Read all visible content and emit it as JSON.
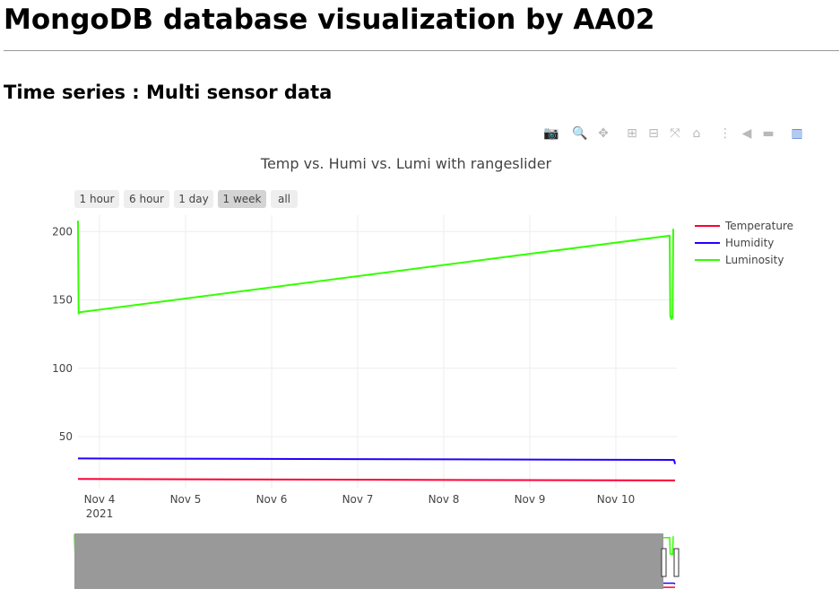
{
  "page": {
    "heading": "MongoDB database visualization by AA02",
    "subheading": "Time series : Multi sensor data"
  },
  "modebar": [
    {
      "name": "camera-icon",
      "glyph": "📷"
    },
    {
      "name": "zoom-icon",
      "glyph": "🔍"
    },
    {
      "name": "pan-icon",
      "glyph": "✥"
    },
    {
      "name": "zoom-in-icon",
      "glyph": "⊞"
    },
    {
      "name": "zoom-out-icon",
      "glyph": "⊟"
    },
    {
      "name": "autoscale-icon",
      "glyph": "⤧"
    },
    {
      "name": "reset-axes-icon",
      "glyph": "⌂"
    },
    {
      "name": "spike-lines-icon",
      "glyph": "⋮"
    },
    {
      "name": "hover-closest-icon",
      "glyph": "◀"
    },
    {
      "name": "hover-compare-icon",
      "glyph": "▬"
    },
    {
      "name": "plotly-logo-icon",
      "glyph": "▥"
    }
  ],
  "chart_data": {
    "type": "line",
    "title": "Temp vs. Humi vs. Lumi with rangeslider",
    "range_selector": {
      "buttons": [
        "1 hour",
        "6 hour",
        "1 day",
        "1 week",
        "all"
      ],
      "active": "1 week"
    },
    "x_ticks": [
      "Nov 4",
      "Nov 5",
      "Nov 6",
      "Nov 7",
      "Nov 8",
      "Nov 9",
      "Nov 10"
    ],
    "x_year_label": "2021",
    "x_range": [
      "2021-11-03 18:00",
      "2021-11-10 17:00"
    ],
    "ylim": [
      12,
      212
    ],
    "y_ticks": [
      50,
      100,
      150,
      200
    ],
    "grid": true,
    "legend_position": "top-right",
    "colors": {
      "Temperature": "#ff0033",
      "Humidity": "#2200ff",
      "Luminosity": "#33ff00"
    },
    "series": [
      {
        "name": "Temperature",
        "x": [
          "2021-11-03 18:00",
          "2021-11-10 16:00",
          "2021-11-10 16:10",
          "2021-11-10 16:30"
        ],
        "values": [
          19,
          18,
          18,
          18
        ]
      },
      {
        "name": "Humidity",
        "x": [
          "2021-11-03 18:00",
          "2021-11-10 16:00",
          "2021-11-10 16:10",
          "2021-11-10 16:20",
          "2021-11-10 16:30"
        ],
        "values": [
          34,
          33,
          33,
          32,
          30
        ]
      },
      {
        "name": "Luminosity",
        "x": [
          "2021-11-03 18:00",
          "2021-11-03 18:10",
          "2021-11-03 18:30",
          "2021-11-10 15:00",
          "2021-11-10 15:10",
          "2021-11-10 15:30",
          "2021-11-10 15:40",
          "2021-11-10 15:50",
          "2021-11-10 16:00"
        ],
        "values": [
          208,
          140,
          141,
          197,
          138,
          136,
          138,
          137,
          202
        ]
      }
    ],
    "rangeslider": true
  }
}
